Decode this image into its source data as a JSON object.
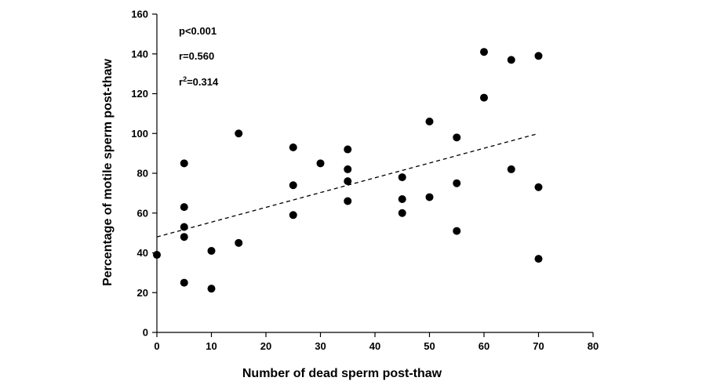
{
  "chart_data": {
    "type": "scatter",
    "title": "",
    "xlabel": "Number of dead sperm post-thaw",
    "ylabel": "Percentage of motile sperm post-thaw",
    "xlim": [
      0,
      80
    ],
    "ylim": [
      0,
      160
    ],
    "xticks": [
      0,
      10,
      20,
      30,
      40,
      50,
      60,
      70,
      80
    ],
    "yticks": [
      0,
      20,
      40,
      60,
      80,
      100,
      120,
      140,
      160
    ],
    "grid": false,
    "legend": "none",
    "marker_color": "#000000",
    "points": [
      {
        "x": 0,
        "y": 39
      },
      {
        "x": 5,
        "y": 85
      },
      {
        "x": 5,
        "y": 63
      },
      {
        "x": 5,
        "y": 53
      },
      {
        "x": 5,
        "y": 48
      },
      {
        "x": 5,
        "y": 25
      },
      {
        "x": 10,
        "y": 41
      },
      {
        "x": 10,
        "y": 22
      },
      {
        "x": 15,
        "y": 100
      },
      {
        "x": 15,
        "y": 45
      },
      {
        "x": 25,
        "y": 93
      },
      {
        "x": 25,
        "y": 74
      },
      {
        "x": 25,
        "y": 59
      },
      {
        "x": 30,
        "y": 85
      },
      {
        "x": 35,
        "y": 92
      },
      {
        "x": 35,
        "y": 82
      },
      {
        "x": 35,
        "y": 76
      },
      {
        "x": 35,
        "y": 66
      },
      {
        "x": 45,
        "y": 78
      },
      {
        "x": 45,
        "y": 67
      },
      {
        "x": 45,
        "y": 60
      },
      {
        "x": 50,
        "y": 106
      },
      {
        "x": 50,
        "y": 68
      },
      {
        "x": 55,
        "y": 98
      },
      {
        "x": 55,
        "y": 75
      },
      {
        "x": 55,
        "y": 51
      },
      {
        "x": 60,
        "y": 141
      },
      {
        "x": 60,
        "y": 118
      },
      {
        "x": 65,
        "y": 137
      },
      {
        "x": 65,
        "y": 82
      },
      {
        "x": 70,
        "y": 139
      },
      {
        "x": 70,
        "y": 73
      },
      {
        "x": 70,
        "y": 37
      }
    ],
    "trendline": {
      "style": "dashed",
      "x": [
        0,
        70
      ],
      "y": [
        48,
        100
      ]
    },
    "annotations": {
      "p": "p<0.001",
      "r": "r=0.560",
      "r2_prefix": "r",
      "r2_sup": "2",
      "r2_value": "=0.314"
    }
  }
}
